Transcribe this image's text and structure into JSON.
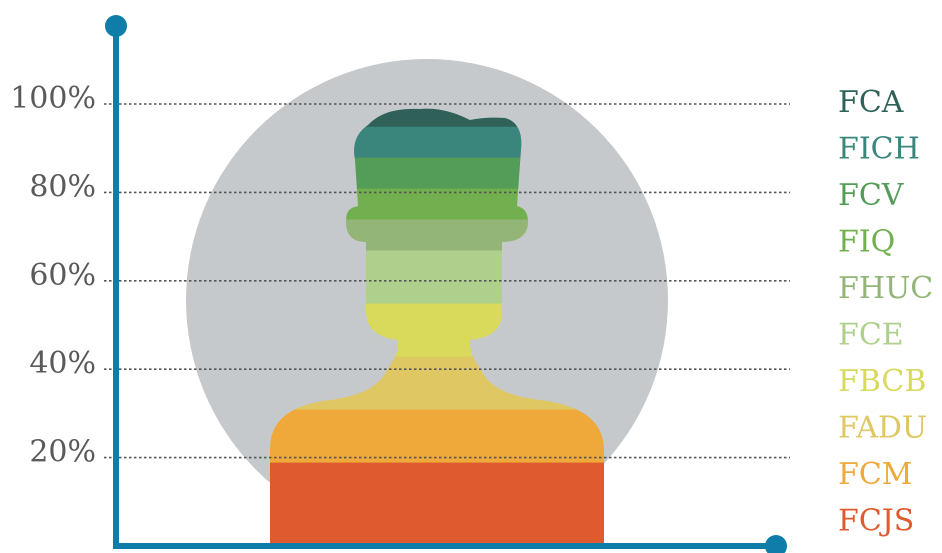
{
  "chart_data": {
    "type": "bar",
    "orientation": "stacked-vertical",
    "title": "",
    "xlabel": "",
    "ylabel": "",
    "ylim": [
      0,
      100
    ],
    "yticks": [
      {
        "value": 20,
        "label": "20%"
      },
      {
        "value": 40,
        "label": "40%"
      },
      {
        "value": 60,
        "label": "60%"
      },
      {
        "value": 80,
        "label": "80%"
      },
      {
        "value": 100,
        "label": "100%"
      }
    ],
    "grid": true,
    "legend_position": "right",
    "series": [
      {
        "name": "FCJS",
        "color": "#e05a2f",
        "start": 0,
        "end": 19
      },
      {
        "name": "FCM",
        "color": "#efa93a",
        "start": 19,
        "end": 31
      },
      {
        "name": "FADU",
        "color": "#dfc763",
        "start": 31,
        "end": 43
      },
      {
        "name": "FBCB",
        "color": "#d9d95b",
        "start": 43,
        "end": 55
      },
      {
        "name": "FCE",
        "color": "#aed08c",
        "start": 55,
        "end": 67
      },
      {
        "name": "FHUC",
        "color": "#93b577",
        "start": 67,
        "end": 74
      },
      {
        "name": "FIQ",
        "color": "#72b04f",
        "start": 74,
        "end": 81
      },
      {
        "name": "FCV",
        "color": "#549d59",
        "start": 81,
        "end": 88
      },
      {
        "name": "FICH",
        "color": "#3b867c",
        "start": 88,
        "end": 95
      },
      {
        "name": "FCA",
        "color": "#2f6158",
        "start": 95,
        "end": 100
      }
    ]
  },
  "colors": {
    "axis": "#0e7ea8",
    "backdrop": "#c6c9cc",
    "gridline": "#555555",
    "tick_text": "#5a5a5a"
  }
}
